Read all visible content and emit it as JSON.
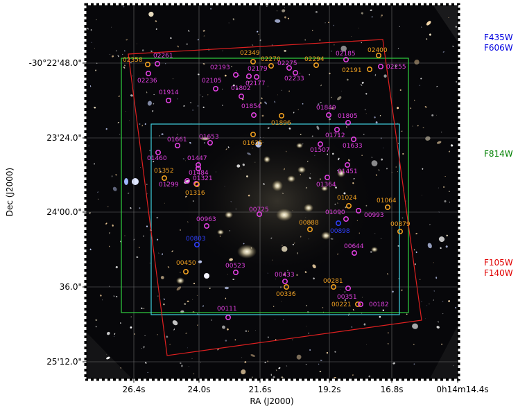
{
  "axes": {
    "xlabel": "RA (J2000)",
    "ylabel": "Dec (J2000)",
    "xticks": [
      "26.4s",
      "24.0s",
      "21.6s",
      "19.2s",
      "16.8s",
      "0h14m14.4s"
    ],
    "yticks": [
      "-30°22'48.0\"",
      "23'24.0\"",
      "24'00.0\"",
      "36.0\"",
      "25'12.0\""
    ]
  },
  "filters": {
    "blue": [
      "F435W",
      "F606W"
    ],
    "green": [
      "F814W"
    ],
    "red": [
      "F105W",
      "F140W"
    ]
  },
  "colors": {
    "magenta": "#e040e0",
    "orange": "#f0a020",
    "blue": "#3040ff",
    "green_box": "#30d040",
    "cyan_box": "#40d0e0",
    "red_box": "#e02020",
    "blue_text": "#0000e0",
    "green_text": "#008000",
    "red_text": "#e00000"
  },
  "sources": [
    {
      "id": "02358",
      "c": "orange"
    },
    {
      "id": "02261",
      "c": "magenta"
    },
    {
      "id": "02236",
      "c": "magenta"
    },
    {
      "id": "01914",
      "c": "magenta"
    },
    {
      "id": "02349",
      "c": "orange"
    },
    {
      "id": "02270",
      "c": "orange"
    },
    {
      "id": "02294",
      "c": "orange"
    },
    {
      "id": "02185",
      "c": "magenta"
    },
    {
      "id": "02400",
      "c": "orange"
    },
    {
      "id": "02191",
      "c": "orange"
    },
    {
      "id": "02255",
      "c": "magenta"
    },
    {
      "id": "02193",
      "c": "magenta"
    },
    {
      "id": "02179",
      "c": "magenta"
    },
    {
      "id": "02275",
      "c": "magenta"
    },
    {
      "id": "02233",
      "c": "magenta"
    },
    {
      "id": "02105",
      "c": "magenta"
    },
    {
      "id": "02177",
      "c": "magenta"
    },
    {
      "id": "01802",
      "c": "magenta"
    },
    {
      "id": "01854",
      "c": "magenta"
    },
    {
      "id": "01849",
      "c": "magenta"
    },
    {
      "id": "01805",
      "c": "magenta"
    },
    {
      "id": "01896",
      "c": "orange"
    },
    {
      "id": "01653",
      "c": "magenta"
    },
    {
      "id": "01661",
      "c": "magenta"
    },
    {
      "id": "01635",
      "c": "orange"
    },
    {
      "id": "01712",
      "c": "magenta"
    },
    {
      "id": "01633",
      "c": "magenta"
    },
    {
      "id": "01507",
      "c": "magenta"
    },
    {
      "id": "01460",
      "c": "magenta"
    },
    {
      "id": "01447",
      "c": "magenta"
    },
    {
      "id": "01451",
      "c": "magenta"
    },
    {
      "id": "01352",
      "c": "orange"
    },
    {
      "id": "01484",
      "c": "magenta"
    },
    {
      "id": "01321",
      "c": "magenta"
    },
    {
      "id": "01299",
      "c": "magenta"
    },
    {
      "id": "01316",
      "c": "orange"
    },
    {
      "id": "01364",
      "c": "magenta"
    },
    {
      "id": "01024",
      "c": "orange"
    },
    {
      "id": "01064",
      "c": "orange"
    },
    {
      "id": "00725",
      "c": "magenta"
    },
    {
      "id": "01090",
      "c": "magenta"
    },
    {
      "id": "00993",
      "c": "magenta"
    },
    {
      "id": "00963",
      "c": "magenta"
    },
    {
      "id": "00888",
      "c": "orange"
    },
    {
      "id": "00879",
      "c": "orange"
    },
    {
      "id": "00898",
      "c": "blue"
    },
    {
      "id": "00803",
      "c": "blue"
    },
    {
      "id": "00644",
      "c": "magenta"
    },
    {
      "id": "00450",
      "c": "orange"
    },
    {
      "id": "00523",
      "c": "magenta"
    },
    {
      "id": "00433",
      "c": "magenta"
    },
    {
      "id": "00281",
      "c": "orange"
    },
    {
      "id": "00336",
      "c": "orange"
    },
    {
      "id": "00351",
      "c": "magenta"
    },
    {
      "id": "00221",
      "c": "orange"
    },
    {
      "id": "00182",
      "c": "magenta"
    },
    {
      "id": "00111",
      "c": "magenta"
    }
  ]
}
